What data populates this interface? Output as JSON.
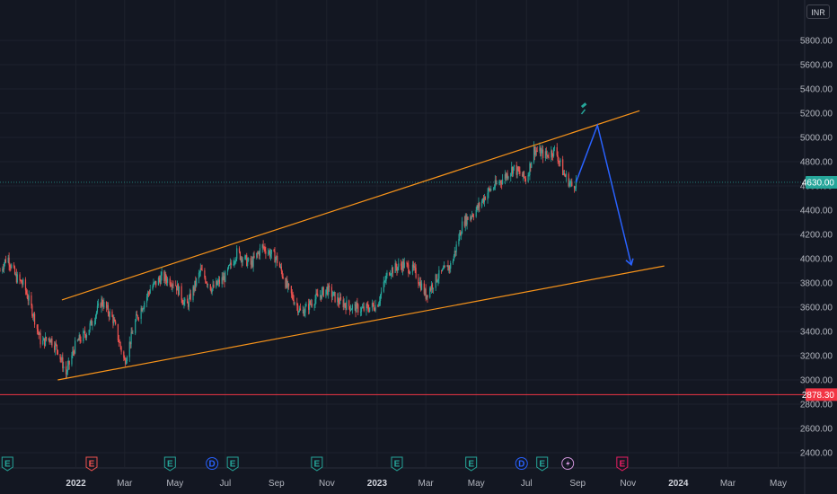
{
  "currency": "INR",
  "colors": {
    "background": "#131722",
    "grid": "#1e222d",
    "up": "#26a69a",
    "down": "#ef5350",
    "channel": "#f7931a",
    "projection": "#2962ff",
    "support_line": "#f23645",
    "price_line": "#26a69a"
  },
  "chart_data": {
    "type": "candlestick",
    "y_ticks": [
      "5800.00",
      "5600.00",
      "5400.00",
      "5200.00",
      "5000.00",
      "4800.00",
      "4600.00",
      "4400.00",
      "4200.00",
      "4000.00",
      "3800.00",
      "3600.00",
      "3400.00",
      "3200.00",
      "3000.00",
      "2800.00",
      "2600.00",
      "2400.00"
    ],
    "ylim": [
      2350,
      5950
    ],
    "x_labels": [
      {
        "text": "2022",
        "date": "2022-01-01",
        "bold": true
      },
      {
        "text": "Mar",
        "date": "2022-03-01",
        "bold": false
      },
      {
        "text": "May",
        "date": "2022-05-01",
        "bold": false
      },
      {
        "text": "Jul",
        "date": "2022-07-01",
        "bold": false
      },
      {
        "text": "Sep",
        "date": "2022-09-01",
        "bold": false
      },
      {
        "text": "Nov",
        "date": "2022-11-01",
        "bold": false
      },
      {
        "text": "2023",
        "date": "2023-01-01",
        "bold": true
      },
      {
        "text": "Mar",
        "date": "2023-03-01",
        "bold": false
      },
      {
        "text": "May",
        "date": "2023-05-01",
        "bold": false
      },
      {
        "text": "Jul",
        "date": "2023-07-01",
        "bold": false
      },
      {
        "text": "Sep",
        "date": "2023-09-01",
        "bold": false
      },
      {
        "text": "Nov",
        "date": "2023-11-01",
        "bold": false
      },
      {
        "text": "2024",
        "date": "2024-01-01",
        "bold": true
      },
      {
        "text": "Mar",
        "date": "2024-03-01",
        "bold": false
      },
      {
        "text": "May",
        "date": "2024-05-01",
        "bold": false
      }
    ],
    "xlim": [
      "2021-10-01",
      "2024-06-01"
    ],
    "price_path": [
      [
        "2021-10-01",
        3900
      ],
      [
        "2021-10-10",
        4020
      ],
      [
        "2021-10-20",
        3850
      ],
      [
        "2021-10-30",
        3780
      ],
      [
        "2021-11-10",
        3550
      ],
      [
        "2021-11-20",
        3300
      ],
      [
        "2021-11-30",
        3350
      ],
      [
        "2021-12-10",
        3250
      ],
      [
        "2021-12-20",
        3050
      ],
      [
        "2022-01-01",
        3300
      ],
      [
        "2022-01-15",
        3400
      ],
      [
        "2022-02-01",
        3650
      ],
      [
        "2022-02-15",
        3500
      ],
      [
        "2022-03-01",
        3150
      ],
      [
        "2022-03-15",
        3500
      ],
      [
        "2022-04-01",
        3750
      ],
      [
        "2022-04-15",
        3850
      ],
      [
        "2022-05-01",
        3800
      ],
      [
        "2022-05-15",
        3600
      ],
      [
        "2022-06-01",
        3900
      ],
      [
        "2022-06-15",
        3750
      ],
      [
        "2022-07-01",
        3850
      ],
      [
        "2022-07-15",
        4050
      ],
      [
        "2022-08-01",
        3950
      ],
      [
        "2022-08-15",
        4100
      ],
      [
        "2022-09-01",
        4000
      ],
      [
        "2022-09-15",
        3750
      ],
      [
        "2022-10-01",
        3550
      ],
      [
        "2022-10-15",
        3650
      ],
      [
        "2022-11-01",
        3750
      ],
      [
        "2022-11-15",
        3650
      ],
      [
        "2022-12-01",
        3600
      ],
      [
        "2022-12-15",
        3580
      ],
      [
        "2023-01-01",
        3620
      ],
      [
        "2023-01-15",
        3900
      ],
      [
        "2023-02-01",
        3950
      ],
      [
        "2023-02-15",
        3900
      ],
      [
        "2023-03-01",
        3700
      ],
      [
        "2023-03-15",
        3850
      ],
      [
        "2023-04-01",
        3950
      ],
      [
        "2023-04-15",
        4300
      ],
      [
        "2023-05-01",
        4400
      ],
      [
        "2023-05-15",
        4550
      ],
      [
        "2023-06-01",
        4650
      ],
      [
        "2023-06-15",
        4750
      ],
      [
        "2023-07-01",
        4650
      ],
      [
        "2023-07-10",
        4900
      ],
      [
        "2023-07-25",
        4850
      ],
      [
        "2023-08-05",
        4900
      ],
      [
        "2023-08-15",
        4700
      ],
      [
        "2023-08-25",
        4600
      ],
      [
        "2023-08-30",
        4630
      ]
    ],
    "channel_upper": [
      [
        "2021-12-15",
        3660
      ],
      [
        "2023-11-15",
        5220
      ]
    ],
    "channel_lower": [
      [
        "2021-12-10",
        3000
      ],
      [
        "2023-12-15",
        3940
      ]
    ],
    "projection": [
      [
        "2023-08-30",
        4630
      ],
      [
        "2023-09-25",
        5100
      ],
      [
        "2023-11-05",
        3950
      ]
    ],
    "current_price": {
      "value": 4630,
      "label": "4630.00"
    },
    "support_level": {
      "value": 2878.3,
      "label": "2878.30"
    },
    "events": [
      {
        "type": "E",
        "date": "2021-10-10",
        "color": "#26a69a"
      },
      {
        "type": "E",
        "date": "2022-01-20",
        "color": "#ef5350"
      },
      {
        "type": "E",
        "date": "2022-04-25",
        "color": "#26a69a"
      },
      {
        "type": "D",
        "date": "2022-06-15",
        "color": "#2962ff"
      },
      {
        "type": "E",
        "date": "2022-07-10",
        "color": "#26a69a"
      },
      {
        "type": "E",
        "date": "2022-10-20",
        "color": "#26a69a"
      },
      {
        "type": "E",
        "date": "2023-01-25",
        "color": "#26a69a"
      },
      {
        "type": "E",
        "date": "2023-04-25",
        "color": "#26a69a"
      },
      {
        "type": "D",
        "date": "2023-06-25",
        "color": "#2962ff"
      },
      {
        "type": "E",
        "date": "2023-07-20",
        "color": "#26a69a"
      },
      {
        "type": "split",
        "date": "2023-08-20",
        "color": "#ce93d8"
      },
      {
        "type": "E",
        "date": "2023-10-25",
        "color": "#e91e63"
      }
    ],
    "marker": {
      "date": "2023-09-10",
      "price": 5230
    }
  }
}
